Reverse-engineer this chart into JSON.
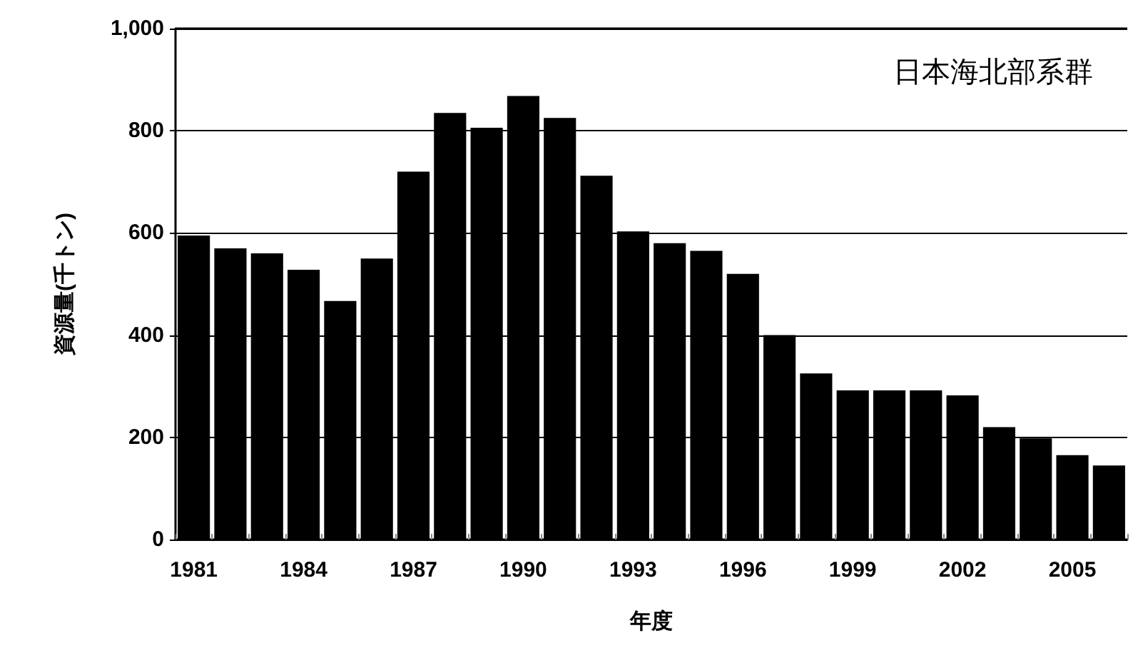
{
  "chart_data": {
    "type": "bar",
    "xlabel": "年度",
    "ylabel": "資源量(千トン)",
    "annotations": [
      "日本海北部系群"
    ],
    "categories": [
      "1981",
      null,
      null,
      "1984",
      null,
      null,
      "1987",
      null,
      null,
      "1990",
      null,
      null,
      "1993",
      null,
      null,
      "1996",
      null,
      null,
      "1999",
      null,
      null,
      "2002",
      null,
      null,
      "2005",
      null
    ],
    "values": [
      595,
      570,
      560,
      528,
      467,
      550,
      720,
      835,
      806,
      868,
      825,
      712,
      603,
      580,
      565,
      520,
      400,
      325,
      292,
      292,
      292,
      282,
      220,
      198,
      165,
      145
    ],
    "color": "#000000",
    "ylim": [
      0,
      1000
    ],
    "yticks": [
      0,
      200,
      400,
      600,
      800,
      {
        "value": 1000,
        "label": "1,000"
      }
    ],
    "grid": "y"
  }
}
